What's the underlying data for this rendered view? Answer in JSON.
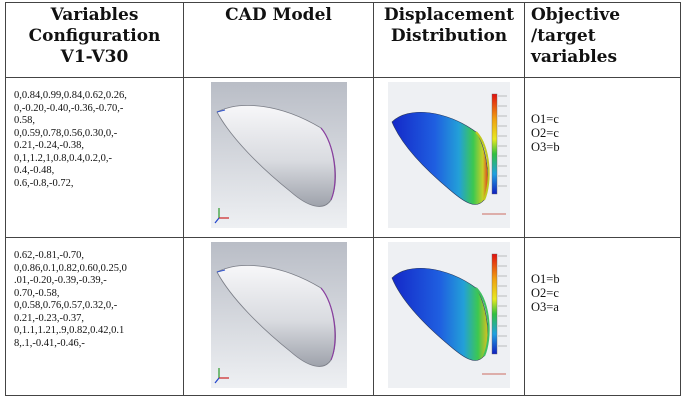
{
  "headers": {
    "col1": "Variables\nConfiguration\nV1-V30",
    "col2": "CAD Model",
    "col3": "Displacement\nDistribution",
    "col4": "Objective\n/target\nvariables"
  },
  "rows": [
    {
      "config": "0,0.84,0.99,0.84,0.62,0.26,\n0,-0.20,-0.40,-0.36,-0.70,-\n0.58,\n0,0.59,0.78,0.56,0.30,0,-\n0.21,-0.24,-0.38,\n0,1,1.2,1,0.8,0.4,0.2,0,-\n0.4,-0.48,\n0.6,-0.8,-0.72,",
      "objectives": [
        "O1=c",
        "O2=c",
        "O3=b"
      ]
    },
    {
      "config": "0.62,-0.81,-0.70,\n0,0.86,0.1,0.82,0.60,0.25,0\n.01,-0.20,-0.39,-0.39,-\n0.70,-0.58,\n0,0.58,0.76,0.57,0.32,0,-\n0.21,-0.23,-0.37,\n0,1.1,1.21,.9,0.82,0.42,0.1\n8,.1,-0.41,-0.46,-",
      "objectives": [
        "O1=b",
        "O2=c",
        "O3=a"
      ]
    }
  ]
}
